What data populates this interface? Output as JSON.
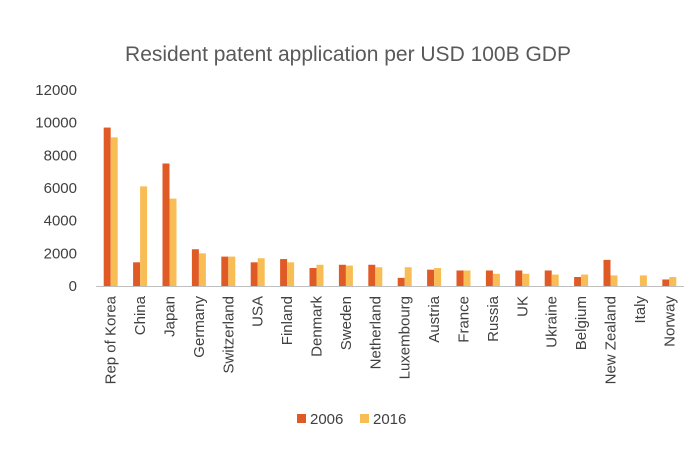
{
  "chart_data": {
    "type": "bar",
    "title": "Resident patent application per USD 100B GDP",
    "xlabel": "",
    "ylabel": "",
    "ylim": [
      0,
      12000
    ],
    "yticks": [
      "0",
      "2000",
      "4000",
      "6000",
      "8000",
      "10000",
      "12000"
    ],
    "grid": false,
    "legend_position": "bottom",
    "categories": [
      "Rep of Korea",
      "China",
      "Japan",
      "Germany",
      "Switzerland",
      "USA",
      "Finland",
      "Denmark",
      "Sweden",
      "Netherland",
      "Luxembourg",
      "Austria",
      "France",
      "Russia",
      "UK",
      "Ukraine",
      "Belgium",
      "New Zealand",
      "Italy",
      "Norway"
    ],
    "series": [
      {
        "name": "2006",
        "color": "#e05a26",
        "values": [
          9700,
          1450,
          7500,
          2250,
          1800,
          1450,
          1650,
          1100,
          1300,
          1300,
          500,
          1000,
          950,
          950,
          950,
          950,
          550,
          1600,
          0,
          400
        ]
      },
      {
        "name": "2016",
        "color": "#f8bd55",
        "values": [
          9100,
          6100,
          5350,
          2000,
          1800,
          1700,
          1450,
          1300,
          1250,
          1150,
          1150,
          1100,
          950,
          750,
          750,
          700,
          700,
          650,
          650,
          550
        ]
      }
    ]
  }
}
